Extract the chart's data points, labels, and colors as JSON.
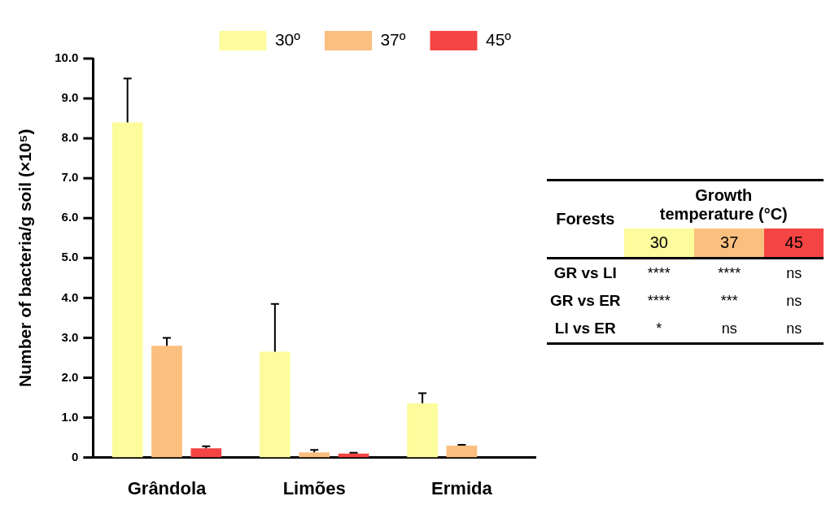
{
  "chart_data": {
    "type": "bar",
    "ylabel": "Number of bacteria/g soil (×10⁵)",
    "categories": [
      "Grândola",
      "Limões",
      "Ermida"
    ],
    "series": [
      {
        "name": "30º",
        "color": "#fcfc9c",
        "values": [
          8.4,
          2.65,
          1.36
        ],
        "errors": [
          1.1,
          1.2,
          0.25
        ]
      },
      {
        "name": "37º",
        "color": "#fbbf80",
        "values": [
          2.8,
          0.13,
          0.3
        ],
        "errors": [
          0.2,
          0.06,
          0.02
        ]
      },
      {
        "name": "45º",
        "color": "#f54444",
        "values": [
          0.23,
          0.1,
          null
        ],
        "errors": [
          0.05,
          0.02,
          null
        ]
      }
    ],
    "ylim": [
      0,
      10
    ],
    "yticks": [
      {
        "value": 0,
        "label": "0"
      },
      {
        "value": 1,
        "label": "1.0"
      },
      {
        "value": 2,
        "label": "2.0"
      },
      {
        "value": 3,
        "label": "3.0"
      },
      {
        "value": 4,
        "label": "4.0"
      },
      {
        "value": 5,
        "label": "5.0"
      },
      {
        "value": 6,
        "label": "6.0"
      },
      {
        "value": 7,
        "label": "7.0"
      },
      {
        "value": 8,
        "label": "8.0"
      },
      {
        "value": 9,
        "label": "9.0"
      },
      {
        "value": 10,
        "label": "10.0"
      }
    ],
    "grid": false,
    "legend": "top right",
    "annotations": [
      "Forests",
      "Growth temperature (°C)",
      "30",
      "37",
      "45",
      "GR vs LI",
      "****",
      "****",
      "ns",
      "GR vs ER",
      "****",
      "***",
      "ns",
      "LI vs ER",
      "*",
      "ns",
      "ns"
    ]
  }
}
